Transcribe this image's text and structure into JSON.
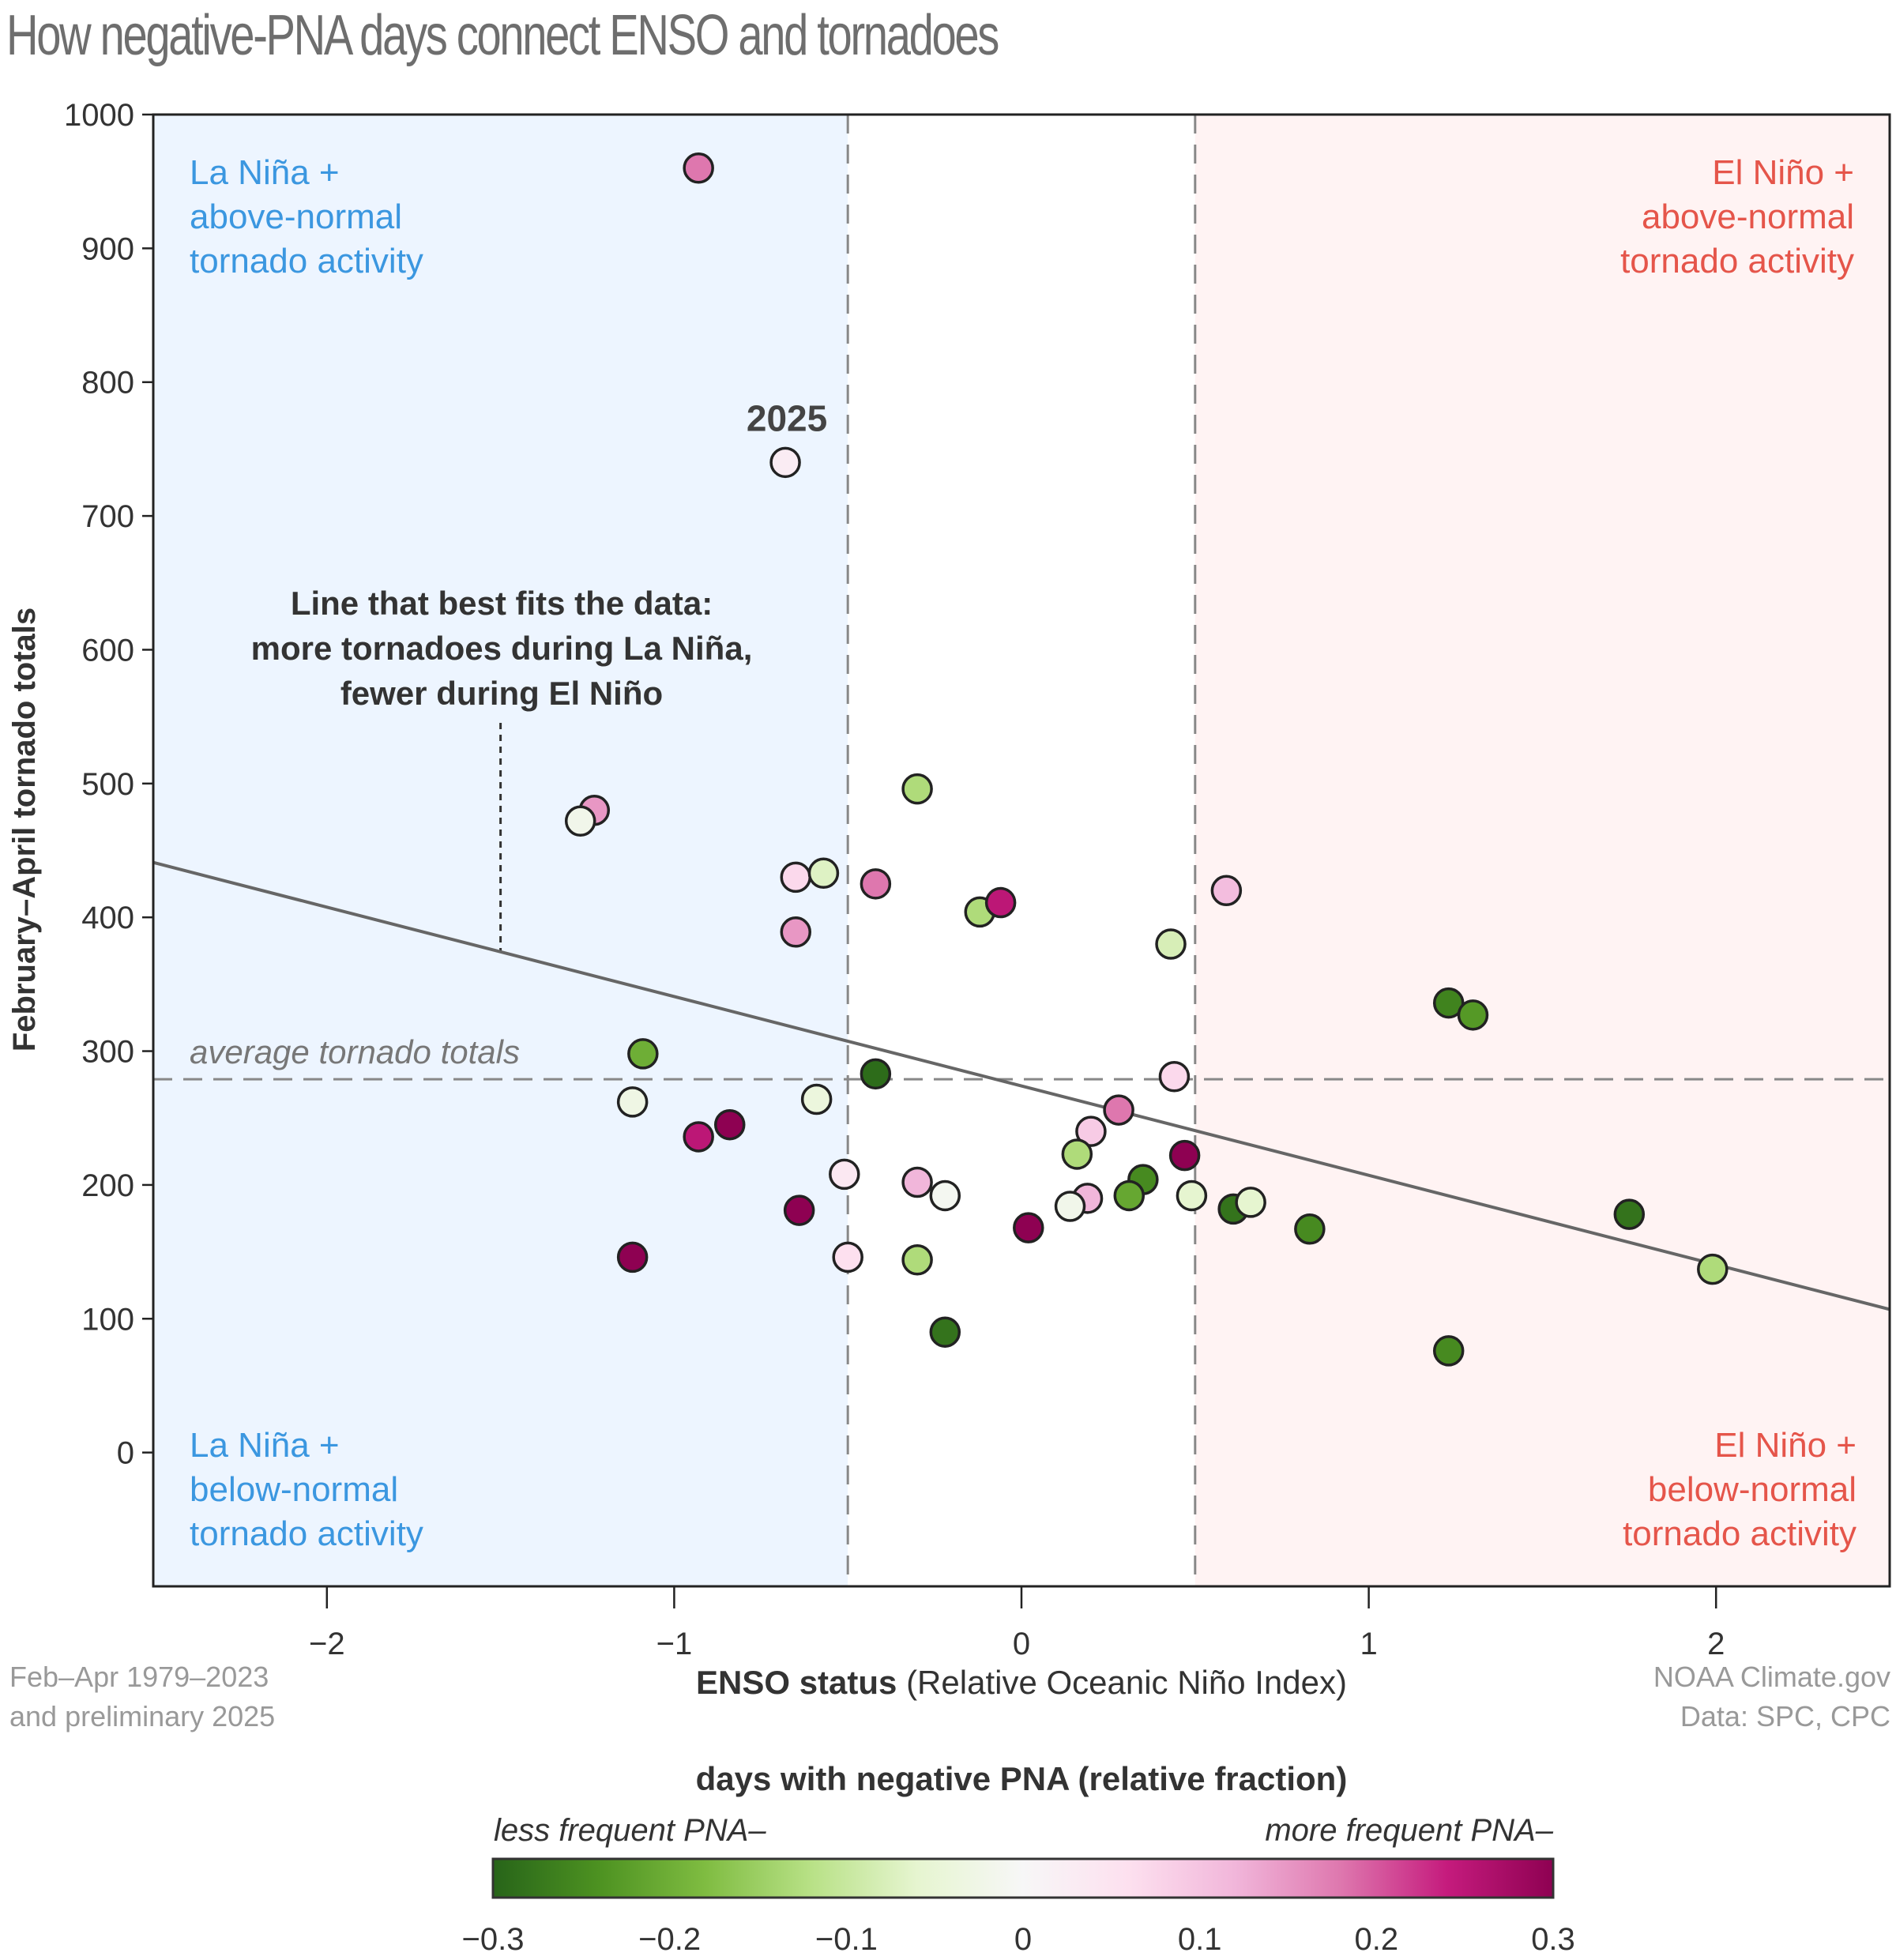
{
  "title": "How negative-PNA days connect ENSO and tornadoes",
  "chart_data": {
    "type": "scatter",
    "title": "How negative-PNA days connect ENSO and tornadoes",
    "xlabel_bold": "ENSO status",
    "xlabel_rest": " (Relative Oceanic Niño Index)",
    "ylabel": "February–April tornado totals",
    "xlim": [
      -2.5,
      2.5
    ],
    "ylim": [
      -100,
      1000
    ],
    "xticks": [
      -2,
      -1,
      0,
      1,
      2
    ],
    "xtick_labels": [
      "−2",
      "−1",
      "0",
      "1",
      "2"
    ],
    "yticks": [
      0,
      100,
      200,
      300,
      400,
      500,
      600,
      700,
      800,
      900,
      1000
    ],
    "ytick_labels": [
      "0",
      "100",
      "200",
      "300",
      "400",
      "500",
      "600",
      "700",
      "800",
      "900",
      "1000"
    ],
    "grid": false,
    "enso_thresholds": [
      -0.5,
      0.5
    ],
    "average_tornado_total": 279,
    "average_label": "average tornado totals",
    "fit_line": {
      "x": [
        -2.5,
        2.5
      ],
      "y": [
        441,
        107
      ]
    },
    "fit_annotation": {
      "lines": [
        "Line that best fits the data:",
        "more tornadoes during La Niña,",
        "fewer during El Niño"
      ],
      "pointer_x": -1.5
    },
    "highlight": {
      "label": "2025",
      "x": -0.68,
      "y": 740
    },
    "quadrants": {
      "top_left": {
        "lines": [
          "La Niña +",
          "above-normal",
          "tornado activity"
        ],
        "color": "#3b97e0"
      },
      "bottom_left": {
        "lines": [
          "La Niña +",
          "below-normal",
          "tornado activity"
        ],
        "color": "#3b97e0"
      },
      "top_right": {
        "lines": [
          "El Niño +",
          "above-normal",
          "tornado activity"
        ],
        "color": "#e5554a"
      },
      "bottom_right": {
        "lines": [
          "El Niño +",
          "below-normal",
          "tornado activity"
        ],
        "color": "#e5554a"
      }
    },
    "region_colors": {
      "la_nina": "#edf5ff",
      "neutral": "#ffffff",
      "el_nino": "#fff3f3"
    },
    "colorbar": {
      "title": "days with negative PNA (relative fraction)",
      "left_label": "less frequent PNA–",
      "right_label": "more frequent PNA–",
      "range": [
        -0.3,
        0.3
      ],
      "ticks": [
        -0.3,
        -0.2,
        -0.1,
        0,
        0.1,
        0.2,
        0.3
      ],
      "tick_labels": [
        "−0.3",
        "−0.2",
        "−0.1",
        "0",
        "0.1",
        "0.2",
        "0.3"
      ],
      "stops": [
        "#276419",
        "#4d9221",
        "#7fbc41",
        "#b8e186",
        "#e6f5d0",
        "#f7f7f7",
        "#fde0ef",
        "#f1b6da",
        "#de77ae",
        "#c51b7d",
        "#8e0152"
      ]
    },
    "points": [
      {
        "x": -0.93,
        "y": 960,
        "pna": 0.18
      },
      {
        "x": -0.68,
        "y": 740,
        "pna": 0.03,
        "label": "2025"
      },
      {
        "x": -1.23,
        "y": 480,
        "pna": 0.15
      },
      {
        "x": -1.27,
        "y": 472,
        "pna": -0.02
      },
      {
        "x": -0.3,
        "y": 496,
        "pna": -0.13
      },
      {
        "x": -0.65,
        "y": 430,
        "pna": 0.07
      },
      {
        "x": -0.57,
        "y": 433,
        "pna": -0.07
      },
      {
        "x": -0.42,
        "y": 425,
        "pna": 0.18
      },
      {
        "x": -0.65,
        "y": 389,
        "pna": 0.15
      },
      {
        "x": -0.12,
        "y": 404,
        "pna": -0.13
      },
      {
        "x": -0.06,
        "y": 411,
        "pna": 0.25
      },
      {
        "x": 0.59,
        "y": 420,
        "pna": 0.11
      },
      {
        "x": 0.43,
        "y": 380,
        "pna": -0.08
      },
      {
        "x": 1.23,
        "y": 336,
        "pna": -0.26
      },
      {
        "x": 1.3,
        "y": 327,
        "pna": -0.23
      },
      {
        "x": -1.09,
        "y": 298,
        "pna": -0.2
      },
      {
        "x": -0.42,
        "y": 283,
        "pna": -0.29
      },
      {
        "x": 0.44,
        "y": 281,
        "pna": 0.07
      },
      {
        "x": -1.12,
        "y": 262,
        "pna": -0.03
      },
      {
        "x": -0.59,
        "y": 264,
        "pna": -0.04
      },
      {
        "x": -0.93,
        "y": 236,
        "pna": 0.25
      },
      {
        "x": -0.84,
        "y": 245,
        "pna": 0.3
      },
      {
        "x": 0.28,
        "y": 256,
        "pna": 0.18
      },
      {
        "x": 0.2,
        "y": 240,
        "pna": 0.09
      },
      {
        "x": 0.16,
        "y": 223,
        "pna": -0.13
      },
      {
        "x": 0.47,
        "y": 222,
        "pna": 0.3
      },
      {
        "x": -0.51,
        "y": 208,
        "pna": 0.04
      },
      {
        "x": -0.3,
        "y": 202,
        "pna": 0.12
      },
      {
        "x": -0.22,
        "y": 192,
        "pna": -0.01
      },
      {
        "x": -0.64,
        "y": 181,
        "pna": 0.3
      },
      {
        "x": 0.35,
        "y": 204,
        "pna": -0.25
      },
      {
        "x": 0.31,
        "y": 192,
        "pna": -0.21
      },
      {
        "x": 0.19,
        "y": 190,
        "pna": 0.12
      },
      {
        "x": 0.14,
        "y": 184,
        "pna": -0.02
      },
      {
        "x": 0.49,
        "y": 192,
        "pna": -0.06
      },
      {
        "x": 0.61,
        "y": 182,
        "pna": -0.28
      },
      {
        "x": 0.66,
        "y": 187,
        "pna": -0.06
      },
      {
        "x": 0.02,
        "y": 168,
        "pna": 0.3
      },
      {
        "x": 0.83,
        "y": 167,
        "pna": -0.25
      },
      {
        "x": 1.75,
        "y": 178,
        "pna": -0.28
      },
      {
        "x": 1.99,
        "y": 137,
        "pna": -0.13
      },
      {
        "x": -1.12,
        "y": 146,
        "pna": 0.3
      },
      {
        "x": -0.5,
        "y": 146,
        "pna": 0.06
      },
      {
        "x": -0.3,
        "y": 144,
        "pna": -0.13
      },
      {
        "x": -0.22,
        "y": 90,
        "pna": -0.28
      },
      {
        "x": 1.23,
        "y": 76,
        "pna": -0.25
      }
    ]
  },
  "footer": {
    "left": [
      "Feb–Apr 1979–2023",
      "and preliminary 2025"
    ],
    "right": [
      "NOAA Climate.gov",
      "Data: SPC, CPC"
    ]
  }
}
